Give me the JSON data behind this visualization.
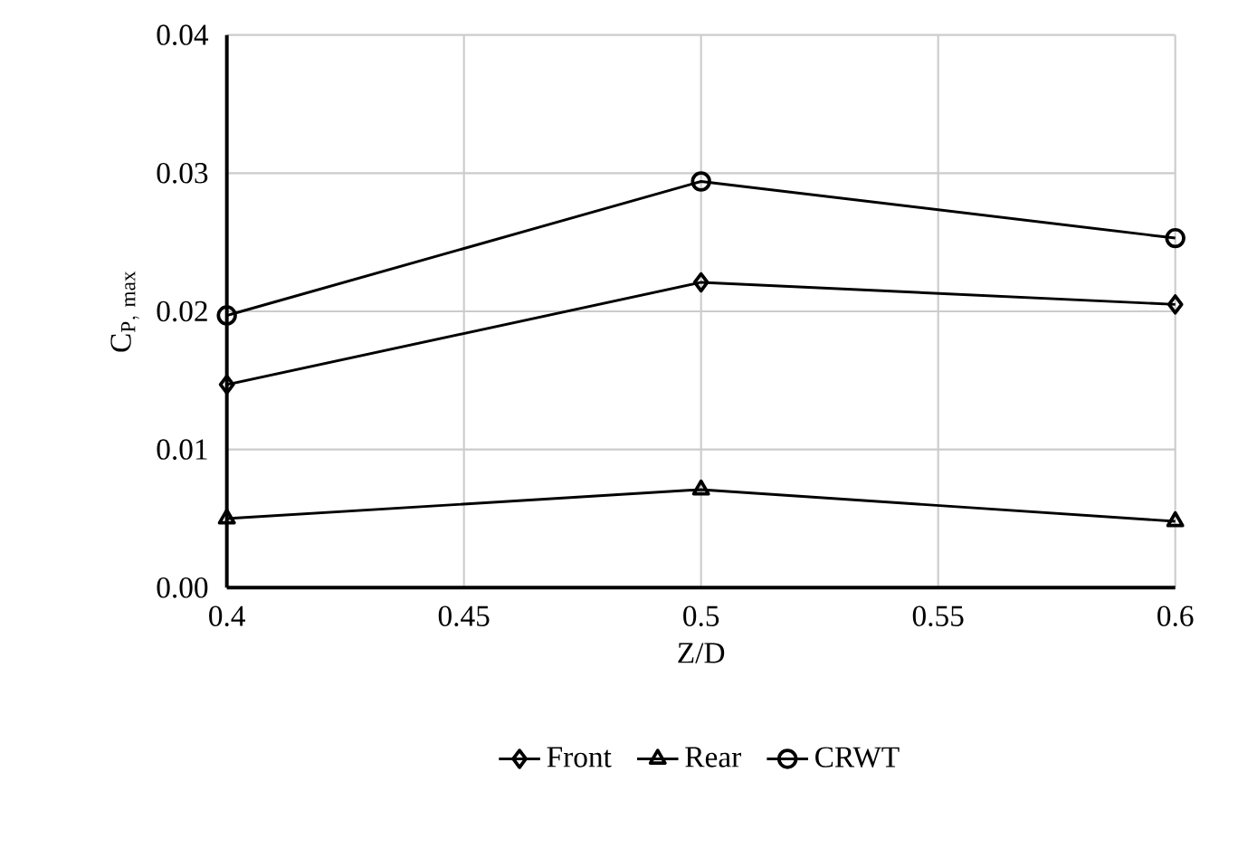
{
  "chart_data": {
    "type": "line",
    "xlabel": "Z/D",
    "ylabel": "\\mathrm{C}_{\\mathrm{P,\\ max}}",
    "xlim": [
      0.4,
      0.6
    ],
    "xticks": [
      0.4,
      0.45,
      0.5,
      0.55,
      0.6
    ],
    "ylim": [
      0,
      0.04
    ],
    "yticks": [
      {
        "value": 0,
        "label": "0.00"
      },
      0.01,
      0.02,
      0.03,
      0.04
    ],
    "grid": true,
    "legend": "bottom",
    "line_style": "solid",
    "x": [
      0.4,
      0.5,
      0.6
    ],
    "series": [
      {
        "name": "Front",
        "color": "#000000",
        "marker": "diamond",
        "values": [
          0.0147,
          0.0221,
          0.0205
        ]
      },
      {
        "name": "Rear",
        "color": "#000000",
        "marker": "triangle",
        "values": [
          0.005,
          0.0071,
          0.0048
        ]
      },
      {
        "name": "CRWT",
        "color": "#000000",
        "marker": "circle",
        "values": [
          0.0197,
          0.0294,
          0.0253
        ]
      }
    ]
  }
}
